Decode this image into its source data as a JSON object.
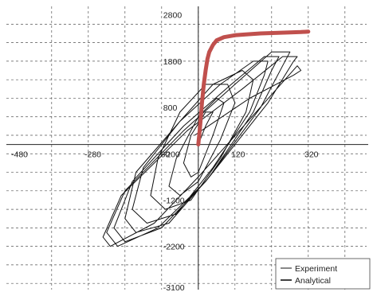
{
  "chart_data": {
    "type": "line",
    "title": "",
    "xlabel": "",
    "ylabel": "",
    "xlim": [
      -480,
      420
    ],
    "ylim": [
      -3100,
      2950
    ],
    "grid": true,
    "legend_position": "bottom-right",
    "x_tick_labels": [
      "-480",
      "-280",
      "-80",
      "120",
      "320"
    ],
    "y_tick_labels": [
      "2800",
      "1800",
      "800",
      "-200",
      "-1200",
      "-2200",
      "-3100"
    ],
    "series": [
      {
        "name": "Experiment",
        "color": "#111111",
        "x": [
          0,
          20,
          40,
          20,
          -20,
          -40,
          -20,
          0,
          40,
          70,
          50,
          0,
          -60,
          -80,
          -50,
          0,
          60,
          100,
          80,
          20,
          -50,
          -110,
          -130,
          -90,
          -20,
          60,
          130,
          150,
          120,
          40,
          -50,
          -150,
          -180,
          -140,
          -60,
          40,
          140,
          180,
          190,
          150,
          60,
          -50,
          -170,
          -200,
          -170,
          -80,
          30,
          150,
          200,
          220,
          180,
          90,
          -40,
          -180,
          -230,
          -200,
          -100,
          20,
          170,
          230,
          250,
          200,
          100,
          -40,
          -200,
          -250,
          -220,
          -110,
          20,
          190,
          260,
          270,
          230,
          120,
          -30,
          -210,
          -260,
          -240,
          -120,
          0,
          180,
          270,
          280,
          260,
          140,
          -10
        ],
        "y": [
          0,
          400,
          700,
          700,
          200,
          -400,
          -700,
          -600,
          200,
          900,
          1000,
          600,
          -300,
          -900,
          -1100,
          -800,
          100,
          900,
          1300,
          1300,
          700,
          -300,
          -1100,
          -1400,
          -1200,
          -300,
          700,
          1400,
          1600,
          1300,
          500,
          -500,
          -1400,
          -1700,
          -1500,
          -500,
          700,
          1500,
          1800,
          1800,
          1300,
          500,
          -600,
          -1600,
          -1900,
          -1700,
          -700,
          700,
          1600,
          1900,
          1900,
          1300,
          400,
          -800,
          -1800,
          -2100,
          -1800,
          -800,
          800,
          1700,
          2000,
          2000,
          1300,
          300,
          -1000,
          -1900,
          -2200,
          -1800,
          -800,
          900,
          1800,
          1900,
          1900,
          1200,
          300,
          -1100,
          -2000,
          -2200,
          -1700,
          -700,
          900,
          1700,
          1600,
          1500,
          1000,
          200
        ]
      },
      {
        "name": "Analytical",
        "color": "#c0504d",
        "x": [
          0,
          5,
          10,
          15,
          20,
          25,
          30,
          40,
          50,
          70,
          100,
          130,
          170,
          210,
          250,
          280,
          300
        ],
        "y": [
          0,
          400,
          900,
          1300,
          1600,
          1850,
          2000,
          2150,
          2250,
          2320,
          2360,
          2380,
          2400,
          2410,
          2420,
          2430,
          2440
        ]
      }
    ]
  }
}
